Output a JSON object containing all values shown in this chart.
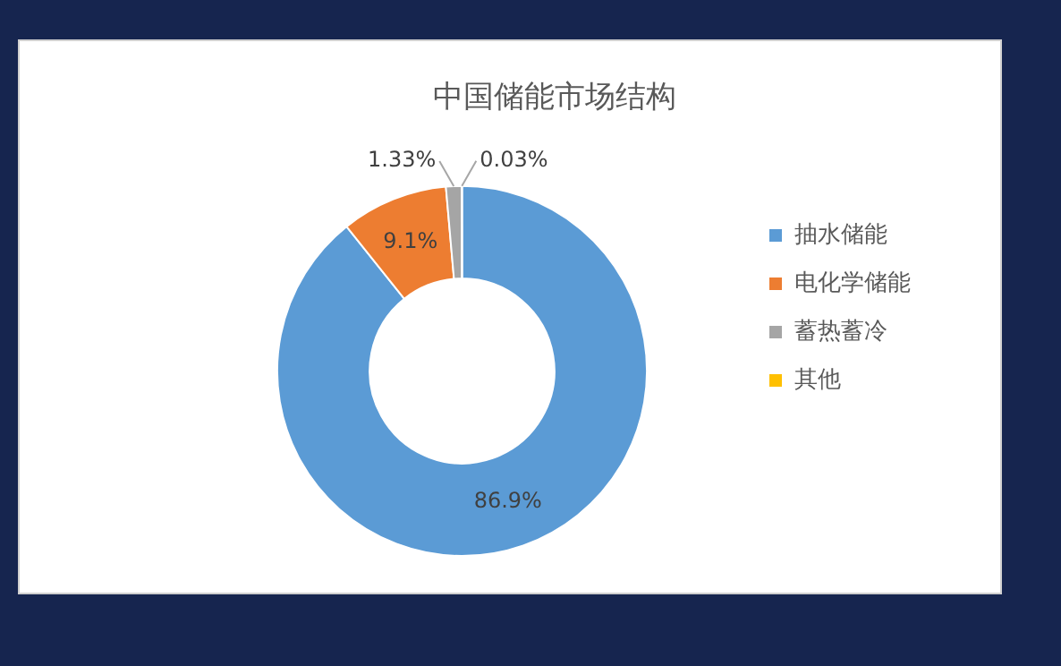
{
  "chart_data": {
    "type": "donut",
    "title": "中国储能市场结构",
    "categories": [
      "抽水储能",
      "电化学储能",
      "蓄热蓄冷",
      "其他"
    ],
    "values": [
      86.9,
      9.1,
      1.33,
      0.03
    ],
    "value_labels": [
      "86.9%",
      "9.1%",
      "1.33%",
      "0.03%"
    ],
    "colors": [
      "#5b9bd5",
      "#ed7d31",
      "#a5a5a5",
      "#ffc000"
    ],
    "legend": "right"
  }
}
